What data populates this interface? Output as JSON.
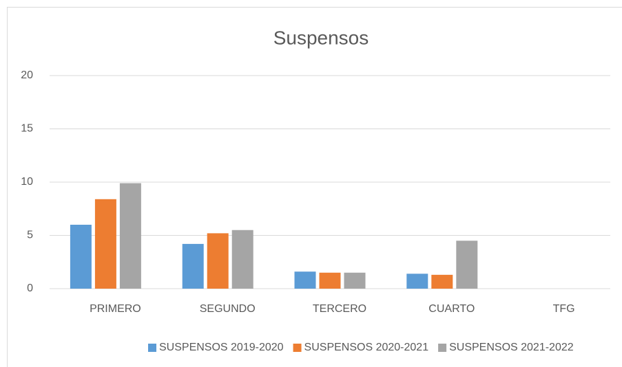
{
  "chart_data": {
    "type": "bar",
    "title": "Suspensos",
    "categories": [
      "PRIMERO",
      "SEGUNDO",
      "TERCERO",
      "CUARTO",
      "TFG"
    ],
    "series": [
      {
        "name": "SUSPENSOS 2019-2020",
        "color": "#5b9bd5",
        "values": [
          6.0,
          4.2,
          1.6,
          1.4,
          0
        ]
      },
      {
        "name": "SUSPENSOS 2020-2021",
        "color": "#ed7d31",
        "values": [
          8.4,
          5.2,
          1.5,
          1.3,
          0
        ]
      },
      {
        "name": "SUSPENSOS 2021-2022",
        "color": "#a5a5a5",
        "values": [
          9.9,
          5.5,
          1.5,
          4.5,
          0
        ]
      }
    ],
    "ylim": [
      0,
      20
    ],
    "yticks": [
      0,
      5,
      10,
      15,
      20
    ],
    "grid": true,
    "legend": "bottom"
  }
}
